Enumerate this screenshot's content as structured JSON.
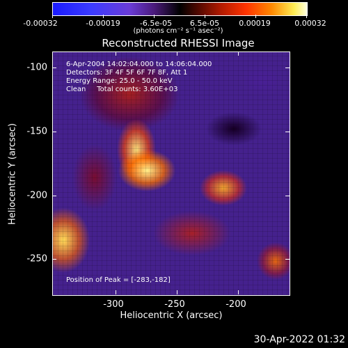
{
  "colorbar": {
    "tick_labels": [
      "-0.00032",
      "-0.00019",
      "-6.5e-05",
      "6.5e-05",
      "0.00019",
      "0.00032"
    ],
    "units": "(photons cm⁻² s⁻¹ asec⁻²)"
  },
  "title": "Reconstructed RHESSI Image",
  "info": {
    "time_range": "6-Apr-2004 14:02:04.000 to 14:06:04.000",
    "detectors": "Detectors: 3F 4F 5F 6F 7F 8F, Att 1",
    "energy": "Energy Range: 25.0 - 50.0 keV",
    "clean": "Clean     Total counts: 3.60E+03",
    "peak": "Position of Peak = [-283,-182]"
  },
  "axes": {
    "xlabel": "Heliocentric X (arcsec)",
    "ylabel": "Heliocentric Y (arcsec)",
    "x_ticks": [
      "-300",
      "-250",
      "-200"
    ],
    "y_ticks": [
      "-100",
      "-150",
      "-200",
      "-250"
    ]
  },
  "timestamp": "30-Apr-2022 01:32",
  "colors": {
    "background": "#000000",
    "quiet_level": "#4a2a8c",
    "peak_level": "#ffee55"
  }
}
